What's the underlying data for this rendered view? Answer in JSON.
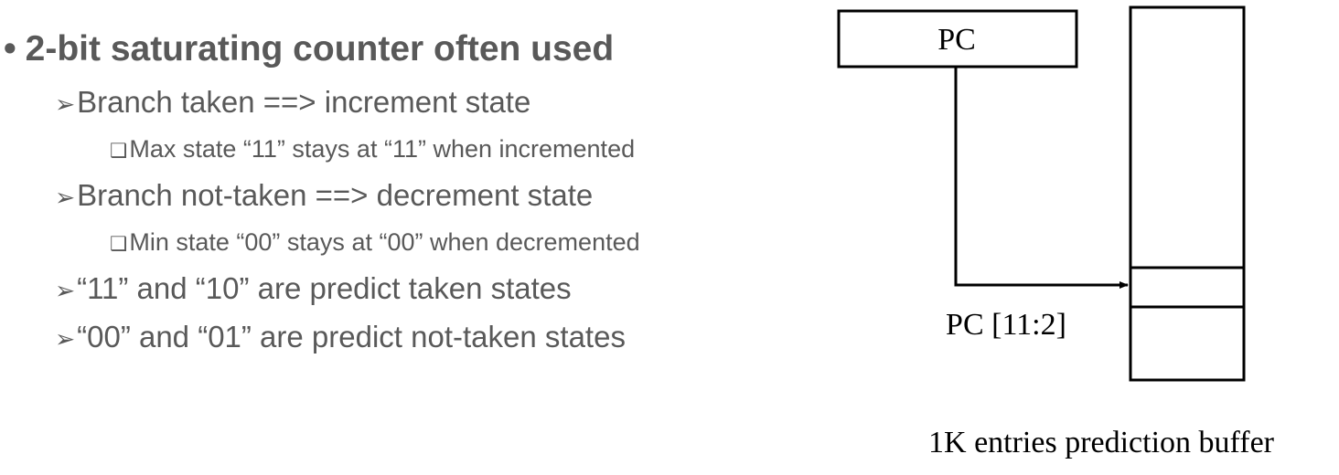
{
  "bullets": {
    "main": {
      "marker": "•",
      "text": "2-bit saturating counter often used"
    },
    "items": [
      {
        "marker": "➢",
        "text": "Branch taken ==> increment state"
      },
      {
        "marker": "❑",
        "text": "Max state “11” stays at “11” when incremented"
      },
      {
        "marker": "➢",
        "text": "Branch not-taken ==> decrement state"
      },
      {
        "marker": "❑",
        "text": "Min state “00” stays at “00” when decremented"
      },
      {
        "marker": "➢",
        "text": "“11” and “10” are predict taken states"
      },
      {
        "marker": "➢",
        "text": "“00” and “01” are predict not-taken states"
      }
    ]
  },
  "diagram": {
    "pc_label": "PC",
    "index_label": "PC [11:2]",
    "buffer_caption": "1K entries prediction buffer"
  }
}
